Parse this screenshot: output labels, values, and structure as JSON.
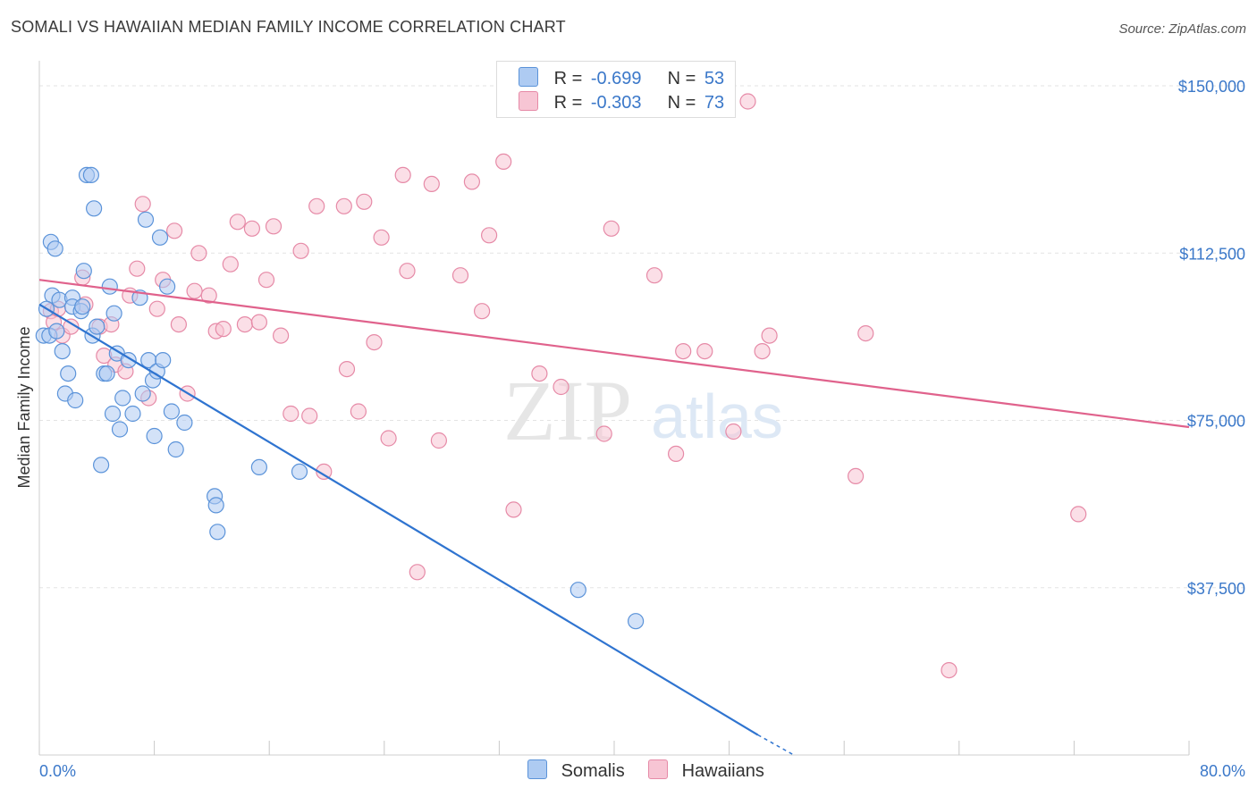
{
  "title": "SOMALI VS HAWAIIAN MEDIAN FAMILY INCOME CORRELATION CHART",
  "source": "Source: ZipAtlas.com",
  "watermark": {
    "zip": "ZIP",
    "atlas": "atlas"
  },
  "colors": {
    "somali_fill": "#aecbf2",
    "somali_stroke": "#5b93d9",
    "somali_line": "#2f74d0",
    "hawaiian_fill": "#f7c5d4",
    "hawaiian_stroke": "#e68aa7",
    "hawaiian_line": "#e0628c",
    "axis_value": "#3b78c9"
  },
  "legend": {
    "somali": {
      "r_label": "R =",
      "r_value": "-0.699",
      "n_label": "N =",
      "n_value": "53"
    },
    "hawaiian": {
      "r_label": "R =",
      "r_value": "-0.303",
      "n_label": "N =",
      "n_value": "73"
    }
  },
  "bottom_legend": {
    "somali": "Somalis",
    "hawaiian": "Hawaiians"
  },
  "chart_data": {
    "type": "scatter",
    "title": "SOMALI VS HAWAIIAN MEDIAN FAMILY INCOME CORRELATION CHART",
    "xlabel": "",
    "ylabel": "Median Family Income",
    "xlim": [
      0,
      80
    ],
    "ylim": [
      0,
      155000
    ],
    "x_tick_labels": {
      "min": "0.0%",
      "max": "80.0%"
    },
    "y_ticks": [
      37500,
      75000,
      112500,
      150000
    ],
    "y_tick_labels": [
      "$37,500",
      "$75,000",
      "$112,500",
      "$150,000"
    ],
    "grid": true,
    "series": [
      {
        "name": "Somalis",
        "points": [
          [
            0.3,
            94000
          ],
          [
            0.7,
            94000
          ],
          [
            0.8,
            115000
          ],
          [
            0.9,
            103000
          ],
          [
            1.1,
            113500
          ],
          [
            1.2,
            95000
          ],
          [
            1.4,
            102000
          ],
          [
            1.6,
            90500
          ],
          [
            1.8,
            81000
          ],
          [
            2.0,
            85500
          ],
          [
            2.3,
            102500
          ],
          [
            2.3,
            100500
          ],
          [
            2.5,
            79500
          ],
          [
            2.9,
            99500
          ],
          [
            3.0,
            100500
          ],
          [
            3.1,
            108500
          ],
          [
            3.3,
            130000
          ],
          [
            3.6,
            130000
          ],
          [
            3.7,
            94000
          ],
          [
            3.8,
            122500
          ],
          [
            4.0,
            96000
          ],
          [
            4.3,
            65000
          ],
          [
            4.5,
            85500
          ],
          [
            4.7,
            85500
          ],
          [
            4.9,
            105000
          ],
          [
            5.1,
            76500
          ],
          [
            5.2,
            99000
          ],
          [
            5.4,
            90000
          ],
          [
            5.6,
            73000
          ],
          [
            5.8,
            80000
          ],
          [
            6.2,
            88500
          ],
          [
            6.5,
            76500
          ],
          [
            7.0,
            102500
          ],
          [
            7.2,
            81000
          ],
          [
            7.4,
            120000
          ],
          [
            7.6,
            88500
          ],
          [
            7.9,
            84000
          ],
          [
            8.0,
            71500
          ],
          [
            8.2,
            86000
          ],
          [
            8.4,
            116000
          ],
          [
            8.6,
            88500
          ],
          [
            8.9,
            105000
          ],
          [
            9.2,
            77000
          ],
          [
            9.5,
            68500
          ],
          [
            10.1,
            74500
          ],
          [
            12.2,
            58000
          ],
          [
            12.3,
            56000
          ],
          [
            12.4,
            50000
          ],
          [
            15.3,
            64500
          ],
          [
            18.1,
            63500
          ],
          [
            37.5,
            37000
          ],
          [
            41.5,
            30000
          ],
          [
            0.5,
            100000
          ]
        ],
        "trend": {
          "x0": 0,
          "y0": 101000,
          "x1": 50,
          "y1": 4500,
          "dash_to_x": 52.5,
          "dash_to_y": 0
        }
      },
      {
        "name": "Hawaiians",
        "points": [
          [
            0.8,
            99500
          ],
          [
            1.0,
            97000
          ],
          [
            1.3,
            100000
          ],
          [
            1.6,
            94000
          ],
          [
            2.2,
            96000
          ],
          [
            3.0,
            107000
          ],
          [
            3.2,
            101000
          ],
          [
            4.2,
            96000
          ],
          [
            4.5,
            89500
          ],
          [
            5.0,
            96500
          ],
          [
            5.3,
            87500
          ],
          [
            6.0,
            86000
          ],
          [
            6.3,
            103000
          ],
          [
            6.8,
            109000
          ],
          [
            7.2,
            123500
          ],
          [
            7.6,
            80000
          ],
          [
            8.2,
            100000
          ],
          [
            8.6,
            106500
          ],
          [
            9.4,
            117500
          ],
          [
            9.7,
            96500
          ],
          [
            10.3,
            81000
          ],
          [
            10.8,
            104000
          ],
          [
            11.1,
            112500
          ],
          [
            11.8,
            103000
          ],
          [
            12.3,
            95000
          ],
          [
            12.8,
            95500
          ],
          [
            13.3,
            110000
          ],
          [
            13.8,
            119500
          ],
          [
            14.3,
            96500
          ],
          [
            14.8,
            118000
          ],
          [
            15.3,
            97000
          ],
          [
            15.8,
            106500
          ],
          [
            16.3,
            118500
          ],
          [
            16.8,
            94000
          ],
          [
            17.5,
            76500
          ],
          [
            18.2,
            113000
          ],
          [
            18.8,
            76000
          ],
          [
            19.3,
            123000
          ],
          [
            19.8,
            63500
          ],
          [
            21.2,
            123000
          ],
          [
            21.4,
            86500
          ],
          [
            22.2,
            77000
          ],
          [
            22.6,
            124000
          ],
          [
            23.3,
            92500
          ],
          [
            23.8,
            116000
          ],
          [
            24.3,
            71000
          ],
          [
            25.3,
            130000
          ],
          [
            25.6,
            108500
          ],
          [
            26.3,
            41000
          ],
          [
            27.3,
            128000
          ],
          [
            27.8,
            70500
          ],
          [
            29.3,
            107500
          ],
          [
            30.1,
            128500
          ],
          [
            30.8,
            99500
          ],
          [
            31.3,
            116500
          ],
          [
            32.3,
            133000
          ],
          [
            33.0,
            55000
          ],
          [
            34.8,
            85500
          ],
          [
            36.3,
            82500
          ],
          [
            39.3,
            72000
          ],
          [
            39.8,
            118000
          ],
          [
            42.8,
            107500
          ],
          [
            44.3,
            67500
          ],
          [
            44.8,
            90500
          ],
          [
            46.3,
            90500
          ],
          [
            48.3,
            72500
          ],
          [
            49.3,
            146500
          ],
          [
            50.3,
            90500
          ],
          [
            50.8,
            94000
          ],
          [
            56.8,
            62500
          ],
          [
            57.5,
            94500
          ],
          [
            63.3,
            19000
          ],
          [
            72.3,
            54000
          ]
        ],
        "trend": {
          "x0": 0,
          "y0": 106500,
          "x1": 80,
          "y1": 73500
        }
      }
    ]
  }
}
